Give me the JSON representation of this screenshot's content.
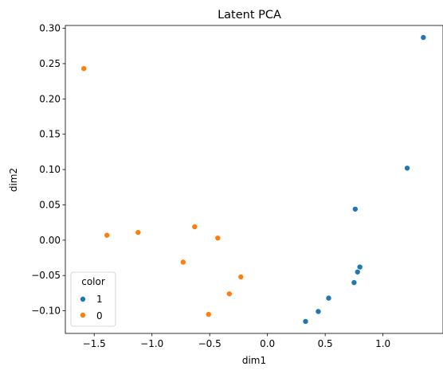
{
  "chart_data": {
    "type": "scatter",
    "title": "Latent PCA",
    "xlabel": "dim1",
    "ylabel": "dim2",
    "xlim": [
      -1.75,
      1.52
    ],
    "ylim": [
      -0.132,
      0.304
    ],
    "xticks": [
      -1.5,
      -1.0,
      -0.5,
      0.0,
      0.5,
      1.0
    ],
    "xtick_labels": [
      "−1.5",
      "−1.0",
      "−0.5",
      "0.0",
      "0.5",
      "1.0"
    ],
    "yticks": [
      -0.1,
      -0.05,
      0.0,
      0.05,
      0.1,
      0.15,
      0.2,
      0.25,
      0.3
    ],
    "ytick_labels": [
      "−0.10",
      "−0.05",
      "0.00",
      "0.05",
      "0.10",
      "0.15",
      "0.20",
      "0.25",
      "0.30"
    ],
    "grid": false,
    "legend": {
      "title": "color",
      "placement": "lower-left"
    },
    "series": [
      {
        "name": "1",
        "color": "#1f77b4",
        "points": [
          {
            "x": 1.35,
            "y": 0.287
          },
          {
            "x": 1.21,
            "y": 0.102
          },
          {
            "x": 0.76,
            "y": 0.044
          },
          {
            "x": 0.8,
            "y": -0.038
          },
          {
            "x": 0.78,
            "y": -0.045
          },
          {
            "x": 0.75,
            "y": -0.06
          },
          {
            "x": 0.53,
            "y": -0.082
          },
          {
            "x": 0.44,
            "y": -0.101
          },
          {
            "x": 0.33,
            "y": -0.115
          }
        ]
      },
      {
        "name": "0",
        "color": "#ff7f0e",
        "points": [
          {
            "x": -1.59,
            "y": 0.243
          },
          {
            "x": -1.39,
            "y": 0.007
          },
          {
            "x": -1.12,
            "y": 0.011
          },
          {
            "x": -0.63,
            "y": 0.019
          },
          {
            "x": -0.43,
            "y": 0.003
          },
          {
            "x": -0.73,
            "y": -0.031
          },
          {
            "x": -0.23,
            "y": -0.052
          },
          {
            "x": -0.33,
            "y": -0.076
          },
          {
            "x": -0.51,
            "y": -0.105
          }
        ]
      }
    ]
  }
}
